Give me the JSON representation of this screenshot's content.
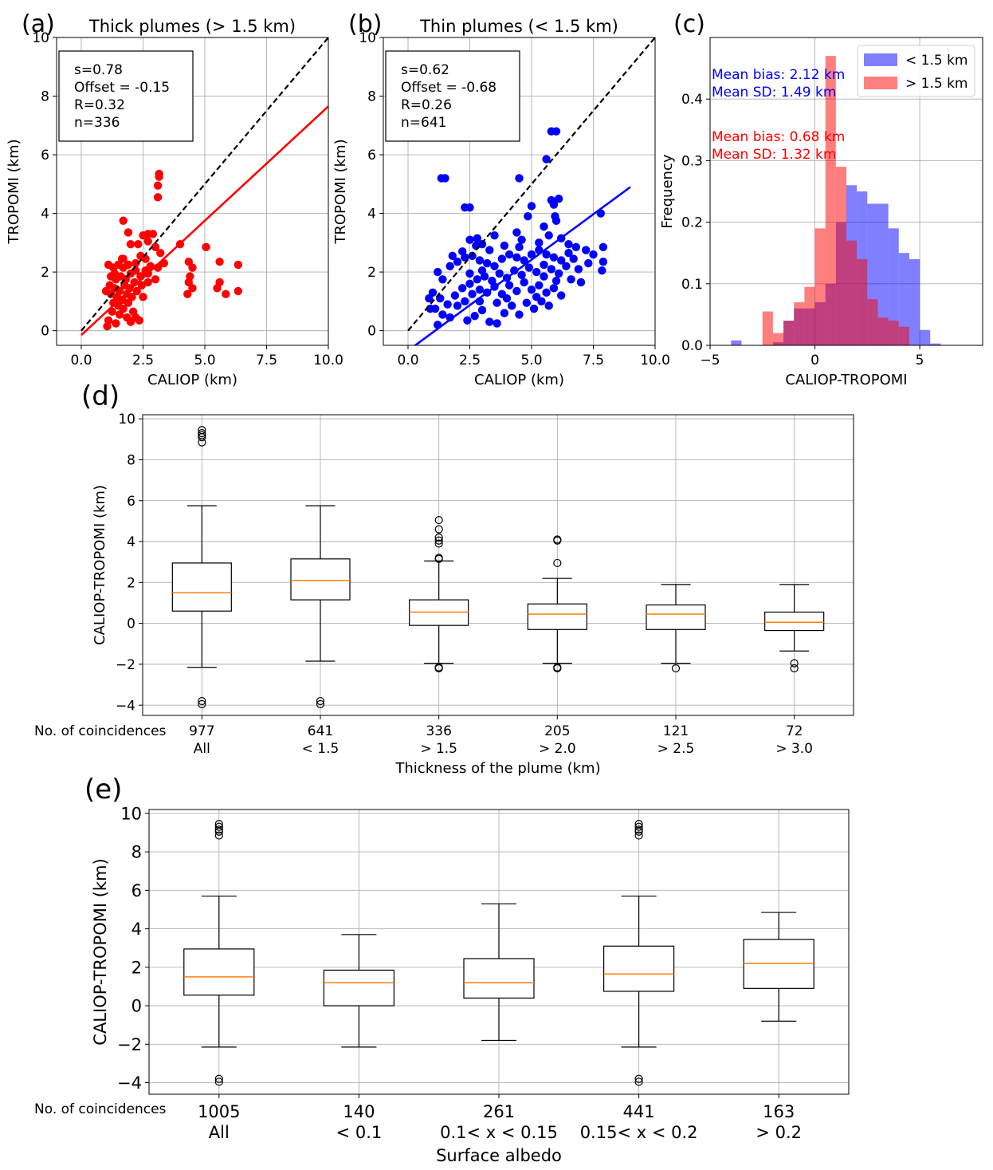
{
  "chart_data": [
    {
      "id": "a",
      "panel_label": "(a)",
      "type": "scatter",
      "title": "Thick plumes (> 1.5 km)",
      "xlabel": "CALIOP (km)",
      "ylabel": "TROPOMI (km)",
      "xlim": [
        -1,
        10
      ],
      "ylim": [
        -0.5,
        10
      ],
      "xticks": [
        0,
        2.5,
        5,
        7.5,
        10
      ],
      "xtick_labels": [
        "0.0",
        "2.5",
        "5.0",
        "7.5",
        "10.0"
      ],
      "yticks": [
        0,
        2,
        4,
        6,
        8,
        10
      ],
      "ytick_labels": [
        "0",
        "2",
        "4",
        "6",
        "8",
        "10"
      ],
      "color": "#ff0000",
      "stats": [
        "s=0.78",
        "Offset = -0.15",
        "R=0.32",
        "n=336"
      ],
      "fit": {
        "slope": 0.78,
        "offset": -0.15,
        "x_range": [
          0,
          10
        ]
      },
      "one_to_one": [
        0,
        10
      ],
      "points": [
        [
          3.15,
          5.35
        ],
        [
          3.15,
          5.25
        ],
        [
          3.1,
          4.95
        ],
        [
          3.1,
          4.55
        ],
        [
          2.9,
          3.3
        ],
        [
          2.7,
          3.3
        ],
        [
          2.7,
          3.05
        ],
        [
          2.5,
          3.25
        ],
        [
          1.7,
          3.75
        ],
        [
          1.9,
          3.35
        ],
        [
          2.0,
          2.95
        ],
        [
          2.3,
          2.95
        ],
        [
          3.0,
          2.85
        ],
        [
          3.2,
          2.65
        ],
        [
          2.4,
          2.55
        ],
        [
          2.6,
          2.45
        ],
        [
          2.8,
          2.2
        ],
        [
          1.7,
          2.45
        ],
        [
          3.35,
          2.3
        ],
        [
          3.1,
          2.15
        ],
        [
          4.0,
          2.95
        ],
        [
          5.05,
          2.85
        ],
        [
          5.6,
          2.35
        ],
        [
          6.35,
          2.25
        ],
        [
          5.6,
          1.65
        ],
        [
          5.5,
          1.45
        ],
        [
          5.85,
          1.25
        ],
        [
          6.35,
          1.35
        ],
        [
          4.35,
          2.35
        ],
        [
          4.5,
          2.15
        ],
        [
          4.4,
          1.85
        ],
        [
          4.35,
          1.65
        ],
        [
          4.5,
          1.45
        ],
        [
          4.3,
          1.25
        ],
        [
          1.1,
          2.25
        ],
        [
          1.3,
          2.15
        ],
        [
          1.5,
          2.25
        ],
        [
          1.7,
          2.15
        ],
        [
          1.2,
          1.85
        ],
        [
          1.4,
          1.75
        ],
        [
          1.6,
          1.85
        ],
        [
          1.8,
          1.75
        ],
        [
          2.0,
          1.95
        ],
        [
          2.2,
          2.05
        ],
        [
          2.4,
          1.85
        ],
        [
          2.6,
          2.05
        ],
        [
          1.15,
          1.55
        ],
        [
          1.35,
          1.45
        ],
        [
          1.55,
          1.35
        ],
        [
          1.75,
          1.55
        ],
        [
          1.95,
          1.45
        ],
        [
          2.15,
          1.65
        ],
        [
          2.45,
          1.55
        ],
        [
          2.7,
          1.65
        ],
        [
          1.2,
          1.25
        ],
        [
          1.45,
          1.15
        ],
        [
          1.65,
          1.05
        ],
        [
          1.85,
          1.25
        ],
        [
          2.05,
          1.15
        ],
        [
          2.25,
          1.35
        ],
        [
          1.3,
          0.95
        ],
        [
          1.5,
          0.85
        ],
        [
          1.7,
          0.75
        ],
        [
          1.9,
          0.95
        ],
        [
          2.1,
          0.65
        ],
        [
          1.25,
          0.65
        ],
        [
          1.55,
          0.55
        ],
        [
          1.85,
          0.45
        ],
        [
          2.2,
          0.45
        ],
        [
          2.35,
          0.35
        ],
        [
          1.1,
          0.35
        ],
        [
          1.05,
          0.15
        ],
        [
          1.4,
          0.25
        ],
        [
          2.0,
          0.3
        ],
        [
          2.5,
          1.15
        ],
        [
          2.7,
          1.95
        ],
        [
          3.0,
          1.75
        ],
        [
          1.35,
          1.95
        ],
        [
          1.65,
          2.45
        ],
        [
          1.9,
          2.25
        ],
        [
          2.2,
          2.3
        ],
        [
          1.0,
          1.35
        ]
      ]
    },
    {
      "id": "b",
      "panel_label": "(b)",
      "type": "scatter",
      "title": "Thin plumes (< 1.5 km)",
      "xlabel": "CALIOP (km)",
      "ylabel": "TROPOMI (km)",
      "xlim": [
        -1,
        10
      ],
      "ylim": [
        -0.5,
        10
      ],
      "xticks": [
        0,
        2.5,
        5,
        7.5,
        10
      ],
      "xtick_labels": [
        "0.0",
        "2.5",
        "5.0",
        "7.5",
        "10.0"
      ],
      "yticks": [
        0,
        2,
        4,
        6,
        8,
        10
      ],
      "ytick_labels": [
        "0",
        "2",
        "4",
        "6",
        "8",
        "10"
      ],
      "color": "#0000ff",
      "stats": [
        "s=0.62",
        "Offset = -0.68",
        "R=0.26",
        "n=641"
      ],
      "fit": {
        "slope": 0.62,
        "offset": -0.68,
        "x_range": [
          0.25,
          9
        ]
      },
      "one_to_one": [
        0,
        10
      ],
      "points": [
        [
          5.8,
          6.8
        ],
        [
          6.0,
          6.8
        ],
        [
          1.35,
          5.2
        ],
        [
          1.5,
          5.2
        ],
        [
          4.5,
          5.2
        ],
        [
          5.6,
          5.85
        ],
        [
          2.3,
          4.2
        ],
        [
          2.5,
          4.2
        ],
        [
          5.0,
          4.25
        ],
        [
          4.85,
          3.9
        ],
        [
          5.8,
          4.45
        ],
        [
          6.1,
          4.5
        ],
        [
          5.9,
          4.3
        ],
        [
          5.95,
          3.9
        ],
        [
          6.0,
          3.75
        ],
        [
          7.8,
          4.0
        ],
        [
          7.9,
          2.85
        ],
        [
          7.9,
          2.35
        ],
        [
          7.85,
          2.05
        ],
        [
          5.5,
          3.55
        ],
        [
          5.7,
          3.25
        ],
        [
          4.4,
          3.35
        ],
        [
          3.5,
          3.25
        ],
        [
          2.5,
          3.1
        ],
        [
          2.8,
          3.15
        ],
        [
          3.0,
          2.95
        ],
        [
          6.2,
          3.15
        ],
        [
          6.5,
          2.95
        ],
        [
          6.8,
          2.85
        ],
        [
          7.2,
          2.75
        ],
        [
          7.5,
          2.6
        ],
        [
          7.3,
          2.3
        ],
        [
          6.9,
          2.1
        ],
        [
          6.6,
          1.75
        ],
        [
          7.0,
          1.65
        ],
        [
          1.2,
          2.0
        ],
        [
          1.4,
          1.75
        ],
        [
          1.7,
          2.2
        ],
        [
          2.0,
          2.35
        ],
        [
          2.3,
          2.5
        ],
        [
          2.6,
          2.55
        ],
        [
          2.9,
          2.4
        ],
        [
          3.2,
          2.3
        ],
        [
          3.5,
          2.2
        ],
        [
          3.8,
          2.45
        ],
        [
          4.1,
          2.6
        ],
        [
          4.4,
          2.5
        ],
        [
          4.7,
          2.4
        ],
        [
          5.0,
          2.6
        ],
        [
          5.3,
          2.75
        ],
        [
          5.6,
          2.6
        ],
        [
          5.9,
          2.5
        ],
        [
          6.2,
          2.4
        ],
        [
          1.0,
          1.3
        ],
        [
          1.3,
          1.1
        ],
        [
          1.6,
          0.9
        ],
        [
          1.9,
          1.2
        ],
        [
          2.2,
          1.45
        ],
        [
          2.5,
          1.6
        ],
        [
          2.8,
          1.75
        ],
        [
          3.1,
          1.85
        ],
        [
          3.4,
          1.7
        ],
        [
          3.7,
          1.95
        ],
        [
          4.0,
          1.8
        ],
        [
          4.3,
          2.05
        ],
        [
          4.6,
          1.9
        ],
        [
          4.9,
          2.15
        ],
        [
          5.2,
          2.0
        ],
        [
          5.5,
          2.25
        ],
        [
          5.8,
          2.1
        ],
        [
          6.1,
          1.95
        ],
        [
          6.4,
          2.2
        ],
        [
          1.1,
          0.75
        ],
        [
          1.4,
          0.55
        ],
        [
          1.7,
          0.45
        ],
        [
          2.0,
          0.85
        ],
        [
          2.3,
          1.0
        ],
        [
          2.6,
          1.25
        ],
        [
          2.9,
          1.4
        ],
        [
          3.2,
          1.3
        ],
        [
          3.5,
          1.5
        ],
        [
          3.8,
          1.25
        ],
        [
          4.1,
          1.55
        ],
        [
          4.4,
          1.35
        ],
        [
          4.7,
          1.65
        ],
        [
          5.0,
          1.4
        ],
        [
          5.3,
          1.55
        ],
        [
          5.6,
          1.3
        ],
        [
          5.9,
          1.45
        ],
        [
          6.2,
          1.2
        ],
        [
          2.4,
          0.35
        ],
        [
          2.7,
          0.5
        ],
        [
          3.0,
          0.7
        ],
        [
          3.3,
          0.3
        ],
        [
          3.6,
          0.25
        ],
        [
          3.9,
          0.6
        ],
        [
          4.2,
          0.85
        ],
        [
          4.5,
          0.55
        ],
        [
          4.8,
          0.95
        ],
        [
          5.1,
          0.75
        ],
        [
          5.4,
          1.0
        ],
        [
          5.7,
          0.85
        ],
        [
          0.9,
          0.75
        ],
        [
          1.2,
          0.2
        ],
        [
          0.85,
          1.1
        ],
        [
          6.5,
          2.65
        ],
        [
          6.7,
          2.45
        ],
        [
          5.3,
          3.0
        ],
        [
          4.6,
          3.1
        ],
        [
          3.9,
          2.9
        ],
        [
          3.3,
          2.75
        ],
        [
          2.75,
          2.9
        ],
        [
          2.2,
          2.7
        ],
        [
          1.8,
          2.55
        ],
        [
          3.6,
          0.95
        ],
        [
          2.9,
          1.0
        ],
        [
          6.0,
          1.7
        ],
        [
          5.2,
          1.15
        ],
        [
          4.0,
          1.1
        ],
        [
          3.0,
          2.05
        ],
        [
          2.5,
          1.95
        ],
        [
          4.5,
          2.85
        ],
        [
          5.5,
          1.85
        ]
      ]
    },
    {
      "id": "c",
      "panel_label": "(c)",
      "type": "histogram",
      "title": "",
      "xlabel": "CALIOP-TROPOMI",
      "ylabel": "Frequency",
      "xlim": [
        -5,
        8
      ],
      "ylim": [
        0,
        0.5
      ],
      "xticks": [
        -5,
        0,
        5
      ],
      "xtick_labels": [
        "−5",
        "0",
        "5"
      ],
      "yticks": [
        0.0,
        0.1,
        0.2,
        0.3,
        0.4
      ],
      "ytick_labels": [
        "0.0",
        "0.1",
        "0.2",
        "0.3",
        "0.4"
      ],
      "legend": {
        "position": "top-right"
      },
      "series": [
        {
          "name": "< 1.5 km",
          "color": "#0000ff",
          "alpha": 0.5,
          "bin_edges": [
            -4,
            -3.5,
            -3,
            -2.5,
            -2,
            -1.5,
            -1,
            -0.5,
            0,
            0.5,
            1,
            1.5,
            2,
            2.5,
            3,
            3.5,
            4,
            4.5,
            5,
            5.5,
            6
          ],
          "values": [
            0.008,
            0,
            0,
            0,
            0.005,
            0.04,
            0.06,
            0.06,
            0.07,
            0.1,
            0.2,
            0.26,
            0.25,
            0.23,
            0.23,
            0.19,
            0.15,
            0.14,
            0.025,
            0.003
          ],
          "annotation": [
            "Mean bias: 2.12 km",
            " Mean SD: 1.49 km"
          ]
        },
        {
          "name": "> 1.5 km",
          "color": "#ff0000",
          "alpha": 0.5,
          "bin_edges": [
            -2.5,
            -2,
            -1.5,
            -1,
            -0.5,
            0,
            0.5,
            1,
            1.5,
            2,
            2.5,
            3,
            3.5,
            4,
            4.5
          ],
          "values": [
            0.055,
            0.02,
            0.04,
            0.07,
            0.095,
            0.19,
            0.47,
            0.29,
            0.17,
            0.14,
            0.075,
            0.045,
            0.04,
            0.03
          ],
          "annotation": [
            "Mean bias: 0.68 km",
            " Mean SD: 1.32 km"
          ]
        }
      ]
    },
    {
      "id": "d",
      "panel_label": "(d)",
      "type": "box",
      "xlabel": "Thickness of the plume (km)",
      "ylabel": "CALIOP-TROPOMI (km)",
      "ylim": [
        -4.5,
        10.2
      ],
      "yticks": [
        -4,
        -2,
        0,
        2,
        4,
        6,
        8,
        10
      ],
      "ytick_labels": [
        "−4",
        "−2",
        "0",
        "2",
        "4",
        "6",
        "8",
        "10"
      ],
      "coincidences_label": "No. of coincidences",
      "boxes": [
        {
          "count": "977",
          "label": "All",
          "q1": 0.6,
          "median": 1.5,
          "q3": 2.95,
          "whisker_low": -2.15,
          "whisker_high": 5.75,
          "outliers": [
            9.45,
            9.3,
            9.2,
            9.1,
            8.85,
            -3.8,
            -3.95
          ]
        },
        {
          "count": "641",
          "label": "< 1.5",
          "q1": 1.15,
          "median": 2.1,
          "q3": 3.15,
          "whisker_low": -1.85,
          "whisker_high": 5.75,
          "outliers": [
            -3.8,
            -3.95
          ]
        },
        {
          "count": "336",
          "label": "> 1.5",
          "q1": -0.1,
          "median": 0.55,
          "q3": 1.15,
          "whisker_low": -1.95,
          "whisker_high": 3.05,
          "outliers": [
            5.05,
            4.6,
            4.2,
            4.05,
            3.9,
            3.2,
            3.15,
            -2.15,
            -2.2
          ]
        },
        {
          "count": "205",
          "label": "> 2.0",
          "q1": -0.3,
          "median": 0.45,
          "q3": 0.95,
          "whisker_low": -1.95,
          "whisker_high": 2.2,
          "outliers": [
            4.1,
            4.05,
            2.95,
            -2.15,
            -2.2
          ]
        },
        {
          "count": "121",
          "label": "> 2.5",
          "q1": -0.3,
          "median": 0.45,
          "q3": 0.9,
          "whisker_low": -1.95,
          "whisker_high": 1.9,
          "outliers": [
            -2.2
          ]
        },
        {
          "count": "72",
          "label": "> 3.0",
          "q1": -0.35,
          "median": 0.05,
          "q3": 0.55,
          "whisker_low": -1.35,
          "whisker_high": 1.9,
          "outliers": [
            -1.95,
            -2.2
          ]
        }
      ]
    },
    {
      "id": "e",
      "panel_label": "(e)",
      "type": "box",
      "xlabel": "Surface albedo",
      "ylabel": "CALIOP-TROPOMI (km)",
      "ylim": [
        -4.6,
        10.2
      ],
      "yticks": [
        -4,
        -2,
        0,
        2,
        4,
        6,
        8,
        10
      ],
      "ytick_labels": [
        "−4",
        "−2",
        "0",
        "2",
        "4",
        "6",
        "8",
        "10"
      ],
      "coincidences_label": "No. of coincidences",
      "boxes": [
        {
          "count": "1005",
          "label": "All",
          "q1": 0.55,
          "median": 1.5,
          "q3": 2.95,
          "whisker_low": -2.15,
          "whisker_high": 5.7,
          "outliers": [
            9.45,
            9.3,
            9.15,
            9.05,
            8.85,
            -3.8,
            -3.95
          ]
        },
        {
          "count": "140",
          "label": "< 0.1",
          "q1": 0.0,
          "median": 1.2,
          "q3": 1.85,
          "whisker_low": -2.15,
          "whisker_high": 3.7,
          "outliers": []
        },
        {
          "count": "261",
          "label": "0.1< x < 0.15",
          "q1": 0.4,
          "median": 1.2,
          "q3": 2.45,
          "whisker_low": -1.8,
          "whisker_high": 5.3,
          "outliers": []
        },
        {
          "count": "441",
          "label": "0.15< x < 0.2",
          "q1": 0.75,
          "median": 1.65,
          "q3": 3.1,
          "whisker_low": -2.15,
          "whisker_high": 5.7,
          "outliers": [
            9.45,
            9.3,
            9.15,
            9.05,
            8.85,
            -3.8,
            -3.95
          ]
        },
        {
          "count": "163",
          "label": "> 0.2",
          "q1": 0.9,
          "median": 2.2,
          "q3": 3.45,
          "whisker_low": -0.8,
          "whisker_high": 4.85,
          "outliers": []
        }
      ]
    }
  ]
}
